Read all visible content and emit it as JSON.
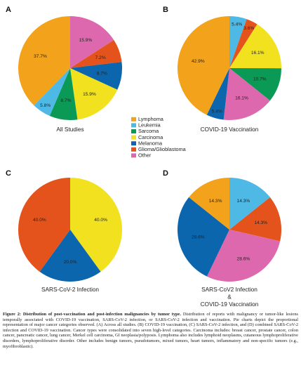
{
  "legend": [
    {
      "label": "Lymphoma",
      "color": "#f2a21b"
    },
    {
      "label": "Leukemia",
      "color": "#4fb9e6"
    },
    {
      "label": "Sarcoma",
      "color": "#0a9a55"
    },
    {
      "label": "Carcinoma",
      "color": "#f2e11e"
    },
    {
      "label": "Melanoma",
      "color": "#0b66ad"
    },
    {
      "label": "Glioma/Glioblastoma",
      "color": "#e4531c"
    },
    {
      "label": "Other",
      "color": "#de68ad"
    }
  ],
  "chart_data": [
    {
      "type": "pie",
      "panel": "A",
      "title": "All Studies",
      "slices": [
        {
          "category": "Other",
          "value": 15.9,
          "label": "15.9%"
        },
        {
          "category": "Glioma/Glioblastoma",
          "value": 7.2,
          "label": "7.2%"
        },
        {
          "category": "Melanoma",
          "value": 8.7,
          "label": "8.7%"
        },
        {
          "category": "Carcinoma",
          "value": 15.9,
          "label": "15.9%"
        },
        {
          "category": "Sarcoma",
          "value": 8.7,
          "label": "8.7%"
        },
        {
          "category": "Leukemia",
          "value": 5.8,
          "label": "5.8%"
        },
        {
          "category": "Lymphoma",
          "value": 37.7,
          "label": "37.7%"
        }
      ]
    },
    {
      "type": "pie",
      "panel": "B",
      "title": "COVID-19 Vaccination",
      "slices": [
        {
          "category": "Leukemia",
          "value": 5.4,
          "label": "5.4%"
        },
        {
          "category": "Glioma/Glioblastoma",
          "value": 3.6,
          "label": "3.6%"
        },
        {
          "category": "Carcinoma",
          "value": 16.1,
          "label": "16.1%"
        },
        {
          "category": "Sarcoma",
          "value": 10.7,
          "label": "10.7%"
        },
        {
          "category": "Other",
          "value": 16.1,
          "label": "16.1%"
        },
        {
          "category": "Melanoma",
          "value": 5.4,
          "label": "5.4%"
        },
        {
          "category": "Lymphoma",
          "value": 42.9,
          "label": "42.9%"
        }
      ]
    },
    {
      "type": "pie",
      "panel": "C",
      "title": "SARS-CoV-2 Infection",
      "slices": [
        {
          "category": "Carcinoma",
          "value": 40.0,
          "label": "40.0%"
        },
        {
          "category": "Melanoma",
          "value": 20.0,
          "label": "20.0%"
        },
        {
          "category": "Glioma/Glioblastoma",
          "value": 40.0,
          "label": "40.0%"
        }
      ]
    },
    {
      "type": "pie",
      "panel": "D",
      "title": "SARS-CoV2 Infection\n&\nCOVID-19 Vaccination",
      "slices": [
        {
          "category": "Leukemia",
          "value": 14.3,
          "label": "14.3%"
        },
        {
          "category": "Glioma/Glioblastoma",
          "value": 14.3,
          "label": "14.3%"
        },
        {
          "category": "Other",
          "value": 28.6,
          "label": "28.6%"
        },
        {
          "category": "Melanoma",
          "value": 28.6,
          "label": "28.6%"
        },
        {
          "category": "Lymphoma",
          "value": 14.3,
          "label": "14.3%"
        }
      ]
    }
  ],
  "caption": {
    "heading": "Figure 2: Distribution of post-vaccination and post-infection malignancies by tumor type.",
    "body": "Distribution of reports with malignancy or tumor-like lesions temporally associated with COVID-19 vaccination, SARS-CoV-2 infection, or SARS-CoV-2 infection and vaccination. Pie charts depict the proportional representation of major cancer categories observed. (A) Across all studies. (B) COVID-19 vaccination, (C) SARS-CoV-2 infection, and (D) combined SARS-CoV-2 infection and COVID-19 vaccination. Cancer types were consolidated into seven high-level categories. Carcinoma includes: breast cancer, prostate cancer, colon cancer, pancreatic cancer, lung cancer, Merkel cell carcinoma, GI neoplasia/polyposis. Lymphoma also includes lymphoid neoplasms, cutaneous lymphoproliferative disorders, lymphoproliferative disorder. Other includes benign tumors, pseudotumors, mixed tumors, heart tumors, inflammatory and non-specific tumors (e.g., myofibroblastic)."
  }
}
